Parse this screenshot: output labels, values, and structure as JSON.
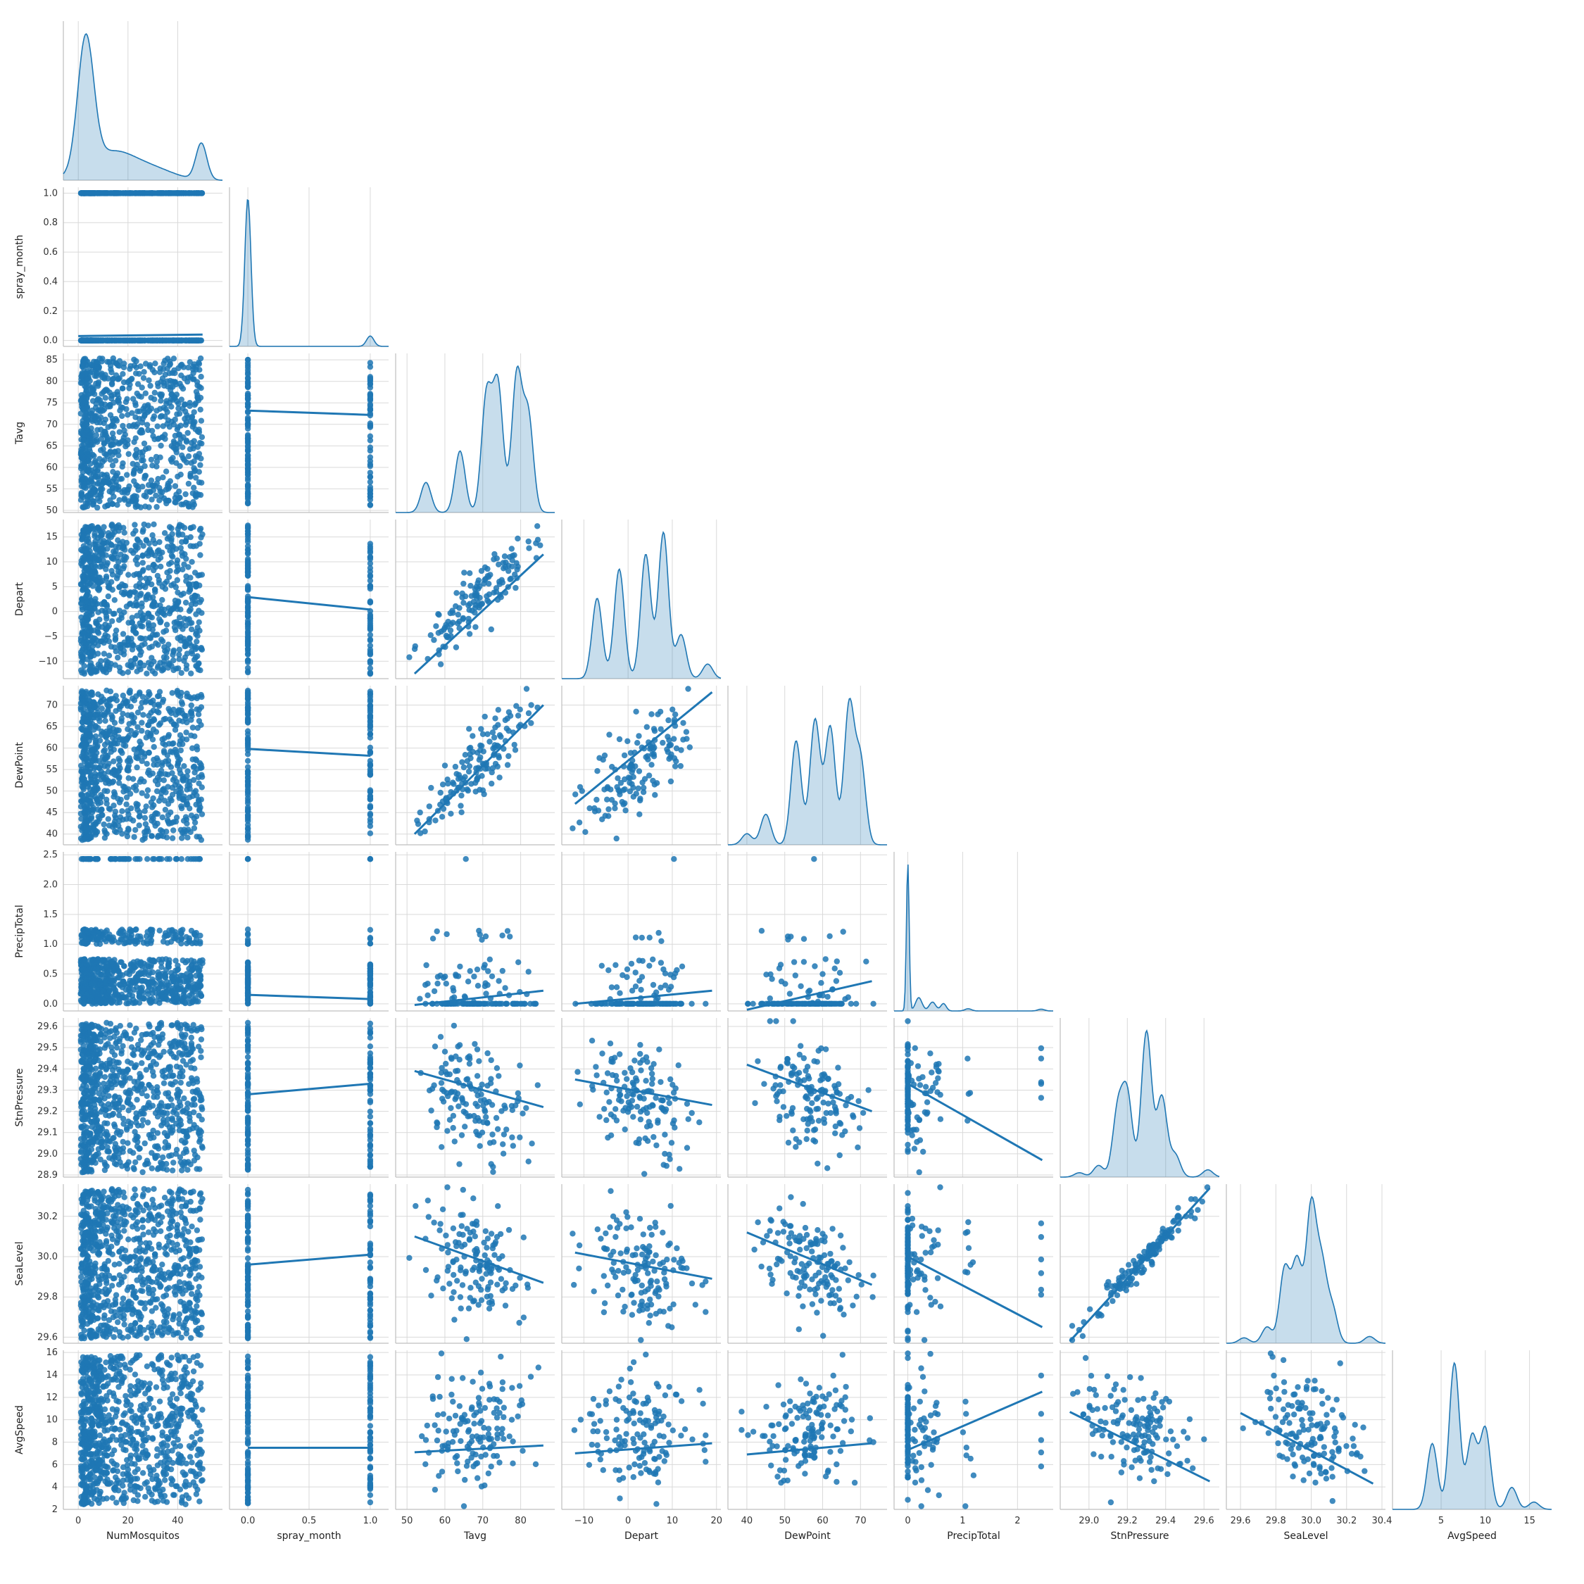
{
  "chart_data": {
    "type": "pairplot",
    "variables": [
      {
        "name": "NumMosquitos",
        "ticks": [
          0,
          20,
          40
        ],
        "xlim": [
          -6,
          58
        ],
        "dist": "highlow",
        "bimodal": [
          3,
          50
        ]
      },
      {
        "name": "spray_month",
        "ticks": [
          0.0,
          0.2,
          0.4,
          0.6,
          0.8,
          1.0
        ],
        "xticks": [
          0.0,
          0.5,
          1.0
        ],
        "xlim": [
          -0.15,
          1.15
        ],
        "ylim": [
          -0.04,
          1.04
        ],
        "dist": "binary"
      },
      {
        "name": "Tavg",
        "ticks": [
          50,
          55,
          60,
          65,
          70,
          75,
          80,
          85
        ],
        "xticks": [
          50,
          60,
          70,
          80
        ],
        "xlim": [
          47,
          89
        ],
        "ylim": [
          49.5,
          86.5
        ],
        "peaks": [
          [
            55,
            0.22
          ],
          [
            64,
            0.45
          ],
          [
            71,
            0.85
          ],
          [
            74,
            0.92
          ],
          [
            79,
            1.0
          ],
          [
            82,
            0.7
          ]
        ]
      },
      {
        "name": "Depart",
        "ticks": [
          -10,
          -5,
          0,
          5,
          10,
          15
        ],
        "xticks": [
          -10,
          0,
          10,
          20
        ],
        "xlim": [
          -15,
          21
        ],
        "ylim": [
          -13.5,
          18.5
        ],
        "peaks": [
          [
            -7,
            0.55
          ],
          [
            -2,
            0.75
          ],
          [
            4,
            0.85
          ],
          [
            8,
            1.0
          ],
          [
            12,
            0.3
          ],
          [
            18,
            0.1
          ]
        ]
      },
      {
        "name": "DewPoint",
        "ticks": [
          40,
          45,
          50,
          55,
          60,
          65,
          70
        ],
        "xticks": [
          40,
          50,
          60,
          70
        ],
        "xlim": [
          35,
          77
        ],
        "ylim": [
          37.5,
          74.5
        ],
        "peaks": [
          [
            40,
            0.08
          ],
          [
            45,
            0.22
          ],
          [
            53,
            0.75
          ],
          [
            58,
            0.9
          ],
          [
            62,
            0.85
          ],
          [
            67,
            1.0
          ],
          [
            70,
            0.6
          ]
        ]
      },
      {
        "name": "PrecipTotal",
        "ticks": [
          0.0,
          0.5,
          1.0,
          1.5,
          2.0,
          2.5
        ],
        "xticks": [
          0,
          1,
          2
        ],
        "xlim": [
          -0.25,
          2.65
        ],
        "ylim": [
          -0.12,
          2.55
        ],
        "dist": "precip"
      },
      {
        "name": "StnPressure",
        "ticks": [
          28.9,
          29.0,
          29.1,
          29.2,
          29.3,
          29.4,
          29.5,
          29.6
        ],
        "xticks": [
          29.0,
          29.2,
          29.4,
          29.6
        ],
        "xlim": [
          28.85,
          29.68
        ],
        "ylim": [
          28.89,
          29.64
        ],
        "peaks": [
          [
            28.95,
            0.03
          ],
          [
            29.05,
            0.08
          ],
          [
            29.15,
            0.45
          ],
          [
            29.2,
            0.55
          ],
          [
            29.3,
            1.0
          ],
          [
            29.38,
            0.55
          ],
          [
            29.45,
            0.15
          ],
          [
            29.62,
            0.05
          ]
        ]
      },
      {
        "name": "SeaLevel",
        "ticks": [
          29.6,
          29.8,
          30.0,
          30.2
        ],
        "xticks": [
          29.6,
          29.8,
          30.0,
          30.2,
          30.4
        ],
        "xlim": [
          29.52,
          30.42
        ],
        "ylim": [
          29.57,
          30.36
        ],
        "peaks": [
          [
            29.62,
            0.04
          ],
          [
            29.75,
            0.12
          ],
          [
            29.85,
            0.55
          ],
          [
            29.92,
            0.6
          ],
          [
            30.0,
            1.0
          ],
          [
            30.06,
            0.55
          ],
          [
            30.12,
            0.25
          ],
          [
            30.33,
            0.05
          ]
        ]
      },
      {
        "name": "AvgSpeed",
        "ticks": [
          2,
          4,
          6,
          8,
          10,
          12,
          14,
          16
        ],
        "xticks": [
          5,
          10,
          15
        ],
        "xlim": [
          -0.5,
          17.5
        ],
        "ylim": [
          2.0,
          16.2
        ],
        "peaks": [
          [
            4,
            0.45
          ],
          [
            6.5,
            1.0
          ],
          [
            8.5,
            0.5
          ],
          [
            10,
            0.55
          ],
          [
            13,
            0.15
          ],
          [
            15.5,
            0.05
          ]
        ]
      }
    ],
    "regressions": [
      {
        "row": "spray_month",
        "col": "NumMosquitos",
        "from": [
          0,
          0.03
        ],
        "to": [
          50,
          0.04
        ]
      },
      {
        "row": "Tavg",
        "col": "spray_month",
        "from": [
          0,
          73.2
        ],
        "to": [
          1,
          72.2
        ]
      },
      {
        "row": "Depart",
        "col": "spray_month",
        "from": [
          0,
          2.9
        ],
        "to": [
          1,
          0.4
        ]
      },
      {
        "row": "Depart",
        "col": "Tavg",
        "from": [
          52,
          -12.5
        ],
        "to": [
          86,
          11.5
        ]
      },
      {
        "row": "DewPoint",
        "col": "spray_month",
        "from": [
          0,
          59.8
        ],
        "to": [
          1,
          58.2
        ]
      },
      {
        "row": "DewPoint",
        "col": "Tavg",
        "from": [
          52,
          40
        ],
        "to": [
          86,
          70
        ]
      },
      {
        "row": "DewPoint",
        "col": "Depart",
        "from": [
          -12,
          47
        ],
        "to": [
          19,
          73
        ]
      },
      {
        "row": "PrecipTotal",
        "col": "spray_month",
        "from": [
          0,
          0.15
        ],
        "to": [
          1,
          0.08
        ]
      },
      {
        "row": "PrecipTotal",
        "col": "Tavg",
        "from": [
          52,
          -0.02
        ],
        "to": [
          86,
          0.22
        ]
      },
      {
        "row": "PrecipTotal",
        "col": "Depart",
        "from": [
          -12,
          0.0
        ],
        "to": [
          19,
          0.22
        ]
      },
      {
        "row": "PrecipTotal",
        "col": "DewPoint",
        "from": [
          40,
          -0.1
        ],
        "to": [
          73,
          0.38
        ]
      },
      {
        "row": "StnPressure",
        "col": "spray_month",
        "from": [
          0,
          29.28
        ],
        "to": [
          1,
          29.33
        ]
      },
      {
        "row": "StnPressure",
        "col": "Tavg",
        "from": [
          52,
          29.39
        ],
        "to": [
          86,
          29.22
        ]
      },
      {
        "row": "StnPressure",
        "col": "Depart",
        "from": [
          -12,
          29.35
        ],
        "to": [
          19,
          29.23
        ]
      },
      {
        "row": "StnPressure",
        "col": "DewPoint",
        "from": [
          40,
          29.42
        ],
        "to": [
          73,
          29.2
        ]
      },
      {
        "row": "StnPressure",
        "col": "PrecipTotal",
        "from": [
          0,
          29.33
        ],
        "to": [
          2.45,
          28.97
        ]
      },
      {
        "row": "SeaLevel",
        "col": "spray_month",
        "from": [
          0,
          29.96
        ],
        "to": [
          1,
          30.01
        ]
      },
      {
        "row": "SeaLevel",
        "col": "Tavg",
        "from": [
          52,
          30.1
        ],
        "to": [
          86,
          29.87
        ]
      },
      {
        "row": "SeaLevel",
        "col": "Depart",
        "from": [
          -12,
          30.02
        ],
        "to": [
          19,
          29.89
        ]
      },
      {
        "row": "SeaLevel",
        "col": "DewPoint",
        "from": [
          40,
          30.12
        ],
        "to": [
          73,
          29.86
        ]
      },
      {
        "row": "SeaLevel",
        "col": "PrecipTotal",
        "from": [
          0,
          30.0
        ],
        "to": [
          2.45,
          29.65
        ]
      },
      {
        "row": "SeaLevel",
        "col": "StnPressure",
        "from": [
          28.9,
          29.58
        ],
        "to": [
          29.63,
          30.34
        ]
      },
      {
        "row": "AvgSpeed",
        "col": "spray_month",
        "from": [
          0,
          7.5
        ],
        "to": [
          1,
          7.5
        ]
      },
      {
        "row": "AvgSpeed",
        "col": "Tavg",
        "from": [
          52,
          7.1
        ],
        "to": [
          86,
          7.7
        ]
      },
      {
        "row": "AvgSpeed",
        "col": "Depart",
        "from": [
          -12,
          7.0
        ],
        "to": [
          19,
          7.9
        ]
      },
      {
        "row": "AvgSpeed",
        "col": "DewPoint",
        "from": [
          40,
          6.9
        ],
        "to": [
          73,
          7.9
        ]
      },
      {
        "row": "AvgSpeed",
        "col": "PrecipTotal",
        "from": [
          0,
          7.3
        ],
        "to": [
          2.45,
          12.5
        ]
      },
      {
        "row": "AvgSpeed",
        "col": "StnPressure",
        "from": [
          28.9,
          10.7
        ],
        "to": [
          29.63,
          4.5
        ]
      },
      {
        "row": "AvgSpeed",
        "col": "SeaLevel",
        "from": [
          29.6,
          10.6
        ],
        "to": [
          30.35,
          4.3
        ]
      }
    ],
    "correlations": {
      "Depart|Tavg": 0.85,
      "DewPoint|Tavg": 0.82,
      "DewPoint|Depart": 0.62,
      "PrecipTotal|Tavg": 0.12,
      "PrecipTotal|Depart": 0.1,
      "PrecipTotal|DewPoint": 0.25,
      "StnPressure|Tavg": -0.35,
      "StnPressure|Depart": -0.25,
      "StnPressure|DewPoint": -0.4,
      "StnPressure|PrecipTotal": -0.45,
      "SeaLevel|Tavg": -0.35,
      "SeaLevel|Depart": -0.2,
      "SeaLevel|DewPoint": -0.45,
      "SeaLevel|PrecipTotal": -0.45,
      "SeaLevel|StnPressure": 0.98,
      "AvgSpeed|Tavg": 0.05,
      "AvgSpeed|Depart": 0.08,
      "AvgSpeed|DewPoint": 0.08,
      "AvgSpeed|PrecipTotal": 0.25,
      "AvgSpeed|StnPressure": -0.45,
      "AvgSpeed|SeaLevel": -0.45
    },
    "diagonal": "kde",
    "grid": true,
    "corner": true,
    "color": "#1f77b4",
    "fill_color": "#1f77b4",
    "grid_color": "#d9d9d9",
    "spine_color": "#bfbfbf"
  }
}
